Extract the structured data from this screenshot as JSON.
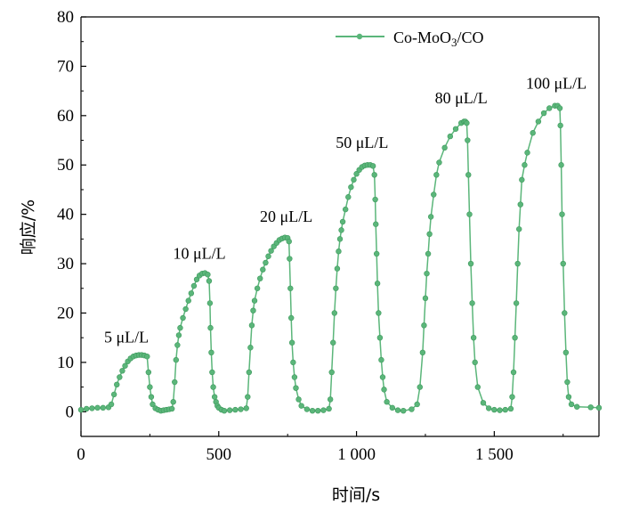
{
  "chart_data": {
    "type": "line",
    "xlabel": "时间/s",
    "ylabel": "响应/%",
    "xlim": [
      0,
      1880
    ],
    "ylim": [
      -5,
      80
    ],
    "xticks": [
      {
        "value": 0,
        "label": "0"
      },
      {
        "value": 500,
        "label": "500"
      },
      {
        "value": 1000,
        "label": "1 000"
      },
      {
        "value": 1500,
        "label": "1 500"
      }
    ],
    "yticks": [
      {
        "value": 0,
        "label": "0"
      },
      {
        "value": 10,
        "label": "10"
      },
      {
        "value": 20,
        "label": "20"
      },
      {
        "value": 30,
        "label": "30"
      },
      {
        "value": 40,
        "label": "40"
      },
      {
        "value": 50,
        "label": "50"
      },
      {
        "value": 60,
        "label": "60"
      },
      {
        "value": 70,
        "label": "70"
      },
      {
        "value": 80,
        "label": "80"
      }
    ],
    "legend": {
      "position": "top-right",
      "label_base": "Co-MoO",
      "label_sub": "3",
      "label_tail": "/CO"
    },
    "colors": {
      "series": "#5BB67A",
      "axis": "#000000"
    },
    "annotations": [
      {
        "text": "5 μL/L",
        "x": 165,
        "y": 14
      },
      {
        "text": "10 μL/L",
        "x": 430,
        "y": 31
      },
      {
        "text": "20 μL/L",
        "x": 745,
        "y": 38.5
      },
      {
        "text": "50 μL/L",
        "x": 1020,
        "y": 53.5
      },
      {
        "text": "80 μL/L",
        "x": 1380,
        "y": 62.5
      },
      {
        "text": "100 μL/L",
        "x": 1725,
        "y": 65.5
      }
    ],
    "series": [
      {
        "name": "Co-MoO3/CO",
        "x": [
          0,
          20,
          40,
          60,
          80,
          100,
          110,
          120,
          130,
          140,
          150,
          160,
          170,
          180,
          190,
          200,
          210,
          220,
          230,
          240,
          245,
          250,
          255,
          260,
          270,
          280,
          290,
          300,
          310,
          320,
          330,
          335,
          340,
          345,
          350,
          355,
          360,
          370,
          380,
          390,
          400,
          410,
          420,
          430,
          440,
          450,
          460,
          465,
          468,
          470,
          473,
          476,
          480,
          485,
          490,
          495,
          500,
          510,
          520,
          540,
          560,
          580,
          600,
          605,
          610,
          615,
          620,
          625,
          630,
          640,
          650,
          660,
          670,
          680,
          690,
          700,
          710,
          720,
          730,
          740,
          750,
          755,
          757,
          760,
          763,
          766,
          770,
          775,
          780,
          790,
          800,
          820,
          840,
          860,
          880,
          900,
          905,
          910,
          915,
          920,
          925,
          930,
          935,
          940,
          945,
          950,
          960,
          970,
          980,
          990,
          1000,
          1010,
          1020,
          1030,
          1040,
          1050,
          1060,
          1065,
          1068,
          1070,
          1073,
          1076,
          1080,
          1085,
          1090,
          1095,
          1100,
          1110,
          1130,
          1150,
          1170,
          1200,
          1220,
          1230,
          1240,
          1245,
          1250,
          1255,
          1260,
          1265,
          1270,
          1280,
          1290,
          1300,
          1320,
          1340,
          1360,
          1380,
          1390,
          1395,
          1400,
          1403,
          1406,
          1410,
          1415,
          1420,
          1425,
          1430,
          1440,
          1460,
          1480,
          1500,
          1520,
          1540,
          1560,
          1565,
          1570,
          1575,
          1580,
          1585,
          1590,
          1595,
          1600,
          1610,
          1620,
          1640,
          1660,
          1680,
          1700,
          1720,
          1730,
          1738,
          1740,
          1743,
          1746,
          1750,
          1755,
          1760,
          1765,
          1770,
          1780,
          1800,
          1850,
          1880
        ],
        "y": [
          0.4,
          0.6,
          0.7,
          0.8,
          0.8,
          0.9,
          1.5,
          3.5,
          5.5,
          7.0,
          8.3,
          9.3,
          10.2,
          10.8,
          11.2,
          11.4,
          11.5,
          11.5,
          11.4,
          11.2,
          8.0,
          5.0,
          3.0,
          1.5,
          0.7,
          0.4,
          0.2,
          0.3,
          0.4,
          0.5,
          0.6,
          2.0,
          6.0,
          10.5,
          13.5,
          15.5,
          17.0,
          19.0,
          20.8,
          22.5,
          24.0,
          25.5,
          26.8,
          27.6,
          28.0,
          28.1,
          27.8,
          26.5,
          22.0,
          17.0,
          12.0,
          8.0,
          5.0,
          3.0,
          2.0,
          1.2,
          0.8,
          0.4,
          0.2,
          0.3,
          0.4,
          0.5,
          0.7,
          3.0,
          8.0,
          13.0,
          17.5,
          20.5,
          22.5,
          25.0,
          27.0,
          28.8,
          30.2,
          31.5,
          32.6,
          33.5,
          34.2,
          34.8,
          35.1,
          35.3,
          35.2,
          34.5,
          31.0,
          25.0,
          19.0,
          14.0,
          10.0,
          7.0,
          4.8,
          2.5,
          1.2,
          0.5,
          0.2,
          0.2,
          0.3,
          0.6,
          2.5,
          8.0,
          14.0,
          20.0,
          25.0,
          29.0,
          32.5,
          35.0,
          36.8,
          38.5,
          41.0,
          43.5,
          45.5,
          47.0,
          48.2,
          49.0,
          49.6,
          49.9,
          50.0,
          50.0,
          49.8,
          48.0,
          43.0,
          38.0,
          32.0,
          26.0,
          20.0,
          15.0,
          10.5,
          7.0,
          4.5,
          2.0,
          0.8,
          0.3,
          0.2,
          0.5,
          1.5,
          5.0,
          12.0,
          17.5,
          23.0,
          28.0,
          32.0,
          36.0,
          39.5,
          44.0,
          48.0,
          50.5,
          53.5,
          55.8,
          57.3,
          58.5,
          58.8,
          58.8,
          58.5,
          55.0,
          48.0,
          40.0,
          30.0,
          22.0,
          15.0,
          10.0,
          5.0,
          1.8,
          0.7,
          0.4,
          0.3,
          0.4,
          0.6,
          3.0,
          8.0,
          15.0,
          22.0,
          30.0,
          37.0,
          42.0,
          47.0,
          50.0,
          52.5,
          56.5,
          58.8,
          60.5,
          61.5,
          62.0,
          62.0,
          61.5,
          58.0,
          50.0,
          40.0,
          30.0,
          20.0,
          12.0,
          6.0,
          3.0,
          1.5,
          1.0,
          0.9,
          0.8
        ]
      }
    ]
  }
}
